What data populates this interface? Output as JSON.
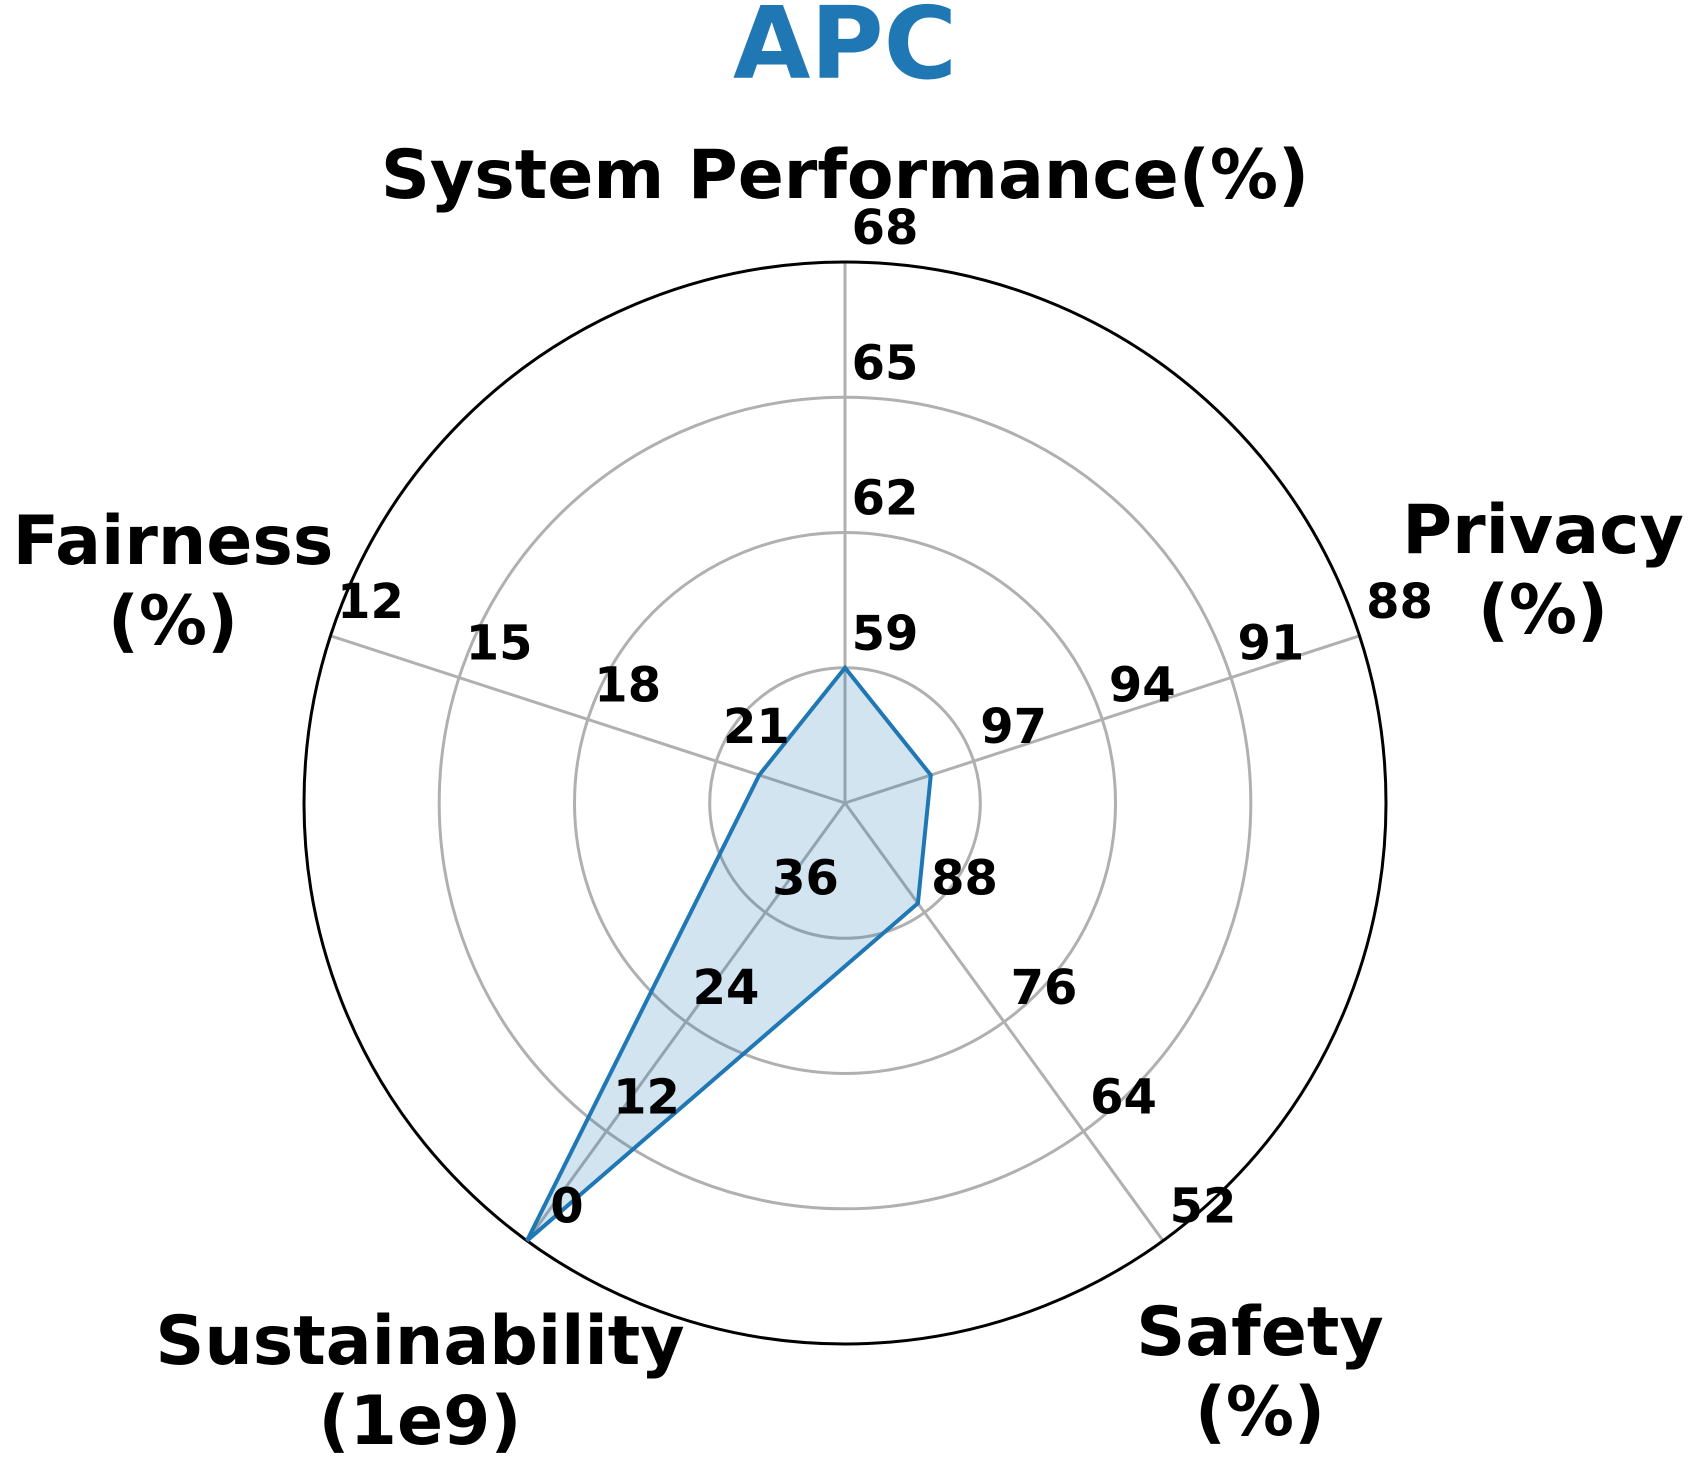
{
  "chart_data": {
    "type": "radar",
    "title": "APC",
    "colors": {
      "title": "#1f77b4",
      "series_line": "#1f77b4",
      "series_fill": "#1f77b4",
      "grid": "#b0b0b0",
      "frame": "#000000"
    },
    "grid": true,
    "axes": [
      {
        "label_lines": [
          "System Performance(%)"
        ],
        "ticks": [
          "59",
          "62",
          "65",
          "68"
        ],
        "range": [
          56,
          68
        ],
        "value": 59
      },
      {
        "label_lines": [
          "Privacy",
          "(%)"
        ],
        "ticks": [
          "97",
          "94",
          "91",
          "88"
        ],
        "range": [
          100,
          88
        ],
        "value": 98
      },
      {
        "label_lines": [
          "Safety",
          "(%)"
        ],
        "ticks": [
          "88",
          "76",
          "64",
          "52"
        ],
        "range": [
          100,
          52
        ],
        "value": 89
      },
      {
        "label_lines": [
          "Sustainability",
          "(1e9)"
        ],
        "ticks": [
          "36",
          "24",
          "12",
          "0"
        ],
        "range": [
          48,
          0
        ],
        "value": 0
      },
      {
        "label_lines": [
          "Fairness",
          "(%)"
        ],
        "ticks": [
          "21",
          "18",
          "15",
          "12"
        ],
        "range": [
          24,
          12
        ],
        "value": 22
      }
    ],
    "series": [
      {
        "values": [
          59,
          98,
          89,
          0,
          22
        ]
      }
    ]
  }
}
